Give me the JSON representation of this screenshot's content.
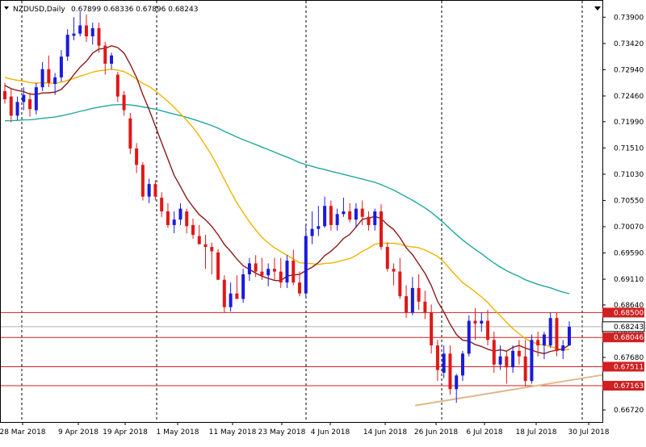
{
  "header": {
    "symbol_tf": "NZDUSD,Daily",
    "ohlc": "0.67899 0.68336 0.67896 0.68243"
  },
  "colors": {
    "bull": "#1a1adc",
    "bear": "#e01818",
    "ma_fast": "#8b1a1a",
    "ma_mid": "#f0b400",
    "ma_slow": "#20a8a0",
    "hline": "#d02020",
    "trend": "#e2b88a",
    "bid_line": "#b0b0b0",
    "grid": "#000000"
  },
  "chart_data": {
    "type": "candlestick",
    "ylim": [
      0.665,
      0.742
    ],
    "y_ticks": [
      "0.73900",
      "0.73420",
      "0.72940",
      "0.72460",
      "0.71990",
      "0.71510",
      "0.71030",
      "0.70550",
      "0.70070",
      "0.69590",
      "0.69110",
      "0.68640",
      "0.68160",
      "0.67680",
      "0.67200",
      "0.66720"
    ],
    "x_labels": [
      "28 Mar 2018",
      "9 Apr 2018",
      "19 Apr 2018",
      "1 May 2018",
      "11 May 2018",
      "23 May 2018",
      "4 Jun 2018",
      "14 Jun 2018",
      "26 Jun 2018",
      "6 Jul 2018",
      "18 Jul 2018",
      "30 Jul 2018"
    ],
    "level_labels": [
      {
        "text": "0.68500",
        "price": 0.685
      },
      {
        "text": "0.68046",
        "price": 0.68046
      },
      {
        "text": "0.67511",
        "price": 0.67511
      },
      {
        "text": "0.67163",
        "price": 0.67163
      }
    ],
    "current_price": {
      "text": "0.68243",
      "price": 0.68243
    },
    "horizontal_levels": [
      0.685,
      0.68046,
      0.67511,
      0.67163
    ],
    "trendline": [
      [
        0.668,
        0.6736
      ]
    ],
    "candles": [
      [
        0.7255,
        0.727,
        0.7232,
        0.724
      ],
      [
        0.7245,
        0.726,
        0.7198,
        0.721
      ],
      [
        0.721,
        0.7245,
        0.7202,
        0.7235
      ],
      [
        0.7235,
        0.7262,
        0.722,
        0.7248
      ],
      [
        0.724,
        0.7252,
        0.7208,
        0.7222
      ],
      [
        0.722,
        0.727,
        0.7212,
        0.7262
      ],
      [
        0.7262,
        0.7308,
        0.7255,
        0.7295
      ],
      [
        0.7295,
        0.732,
        0.7262,
        0.727
      ],
      [
        0.7268,
        0.7288,
        0.7248,
        0.728
      ],
      [
        0.728,
        0.733,
        0.7272,
        0.7318
      ],
      [
        0.7318,
        0.7368,
        0.731,
        0.7358
      ],
      [
        0.7356,
        0.739,
        0.7348,
        0.736
      ],
      [
        0.736,
        0.74,
        0.7355,
        0.7375
      ],
      [
        0.7375,
        0.7395,
        0.7345,
        0.7355
      ],
      [
        0.7355,
        0.738,
        0.734,
        0.737
      ],
      [
        0.737,
        0.738,
        0.7325,
        0.7338
      ],
      [
        0.7338,
        0.7345,
        0.7285,
        0.7305
      ],
      [
        0.7305,
        0.7325,
        0.7295,
        0.732
      ],
      [
        0.7285,
        0.729,
        0.7235,
        0.7245
      ],
      [
        0.7248,
        0.7255,
        0.721,
        0.722
      ],
      [
        0.7205,
        0.7215,
        0.714,
        0.715
      ],
      [
        0.715,
        0.716,
        0.7105,
        0.712
      ],
      [
        0.712,
        0.7125,
        0.7055,
        0.7062
      ],
      [
        0.7062,
        0.7095,
        0.705,
        0.7085
      ],
      [
        0.7085,
        0.7092,
        0.7055,
        0.7062
      ],
      [
        0.706,
        0.707,
        0.7025,
        0.7035
      ],
      [
        0.7035,
        0.705,
        0.7005,
        0.701
      ],
      [
        0.701,
        0.7035,
        0.6995,
        0.702
      ],
      [
        0.702,
        0.705,
        0.701,
        0.704
      ],
      [
        0.7035,
        0.704,
        0.6995,
        0.7008
      ],
      [
        0.701,
        0.7022,
        0.6985,
        0.6992
      ],
      [
        0.699,
        0.701,
        0.6975,
        0.6975
      ],
      [
        0.6975,
        0.6992,
        0.693,
        0.697
      ],
      [
        0.697,
        0.6978,
        0.692,
        0.6962
      ],
      [
        0.696,
        0.6966,
        0.691,
        0.691
      ],
      [
        0.691,
        0.6918,
        0.685,
        0.686
      ],
      [
        0.686,
        0.6905,
        0.6852,
        0.6885
      ],
      [
        0.6885,
        0.6918,
        0.6875,
        0.6875
      ],
      [
        0.6875,
        0.693,
        0.6868,
        0.692
      ],
      [
        0.692,
        0.695,
        0.6908,
        0.694
      ],
      [
        0.694,
        0.6955,
        0.6915,
        0.6925
      ],
      [
        0.6925,
        0.695,
        0.691,
        0.6918
      ],
      [
        0.6918,
        0.694,
        0.6898,
        0.693
      ],
      [
        0.693,
        0.695,
        0.691,
        0.6925
      ],
      [
        0.6925,
        0.695,
        0.6895,
        0.6905
      ],
      [
        0.6905,
        0.6955,
        0.6895,
        0.6945
      ],
      [
        0.6945,
        0.6965,
        0.69,
        0.6905
      ],
      [
        0.6905,
        0.6925,
        0.688,
        0.6885
      ],
      [
        0.6885,
        0.701,
        0.6878,
        0.699
      ],
      [
        0.699,
        0.7035,
        0.6975,
        0.7003
      ],
      [
        0.7003,
        0.7045,
        0.699,
        0.7008
      ],
      [
        0.7008,
        0.7062,
        0.7005,
        0.7045
      ],
      [
        0.7045,
        0.7055,
        0.7,
        0.701
      ],
      [
        0.701,
        0.704,
        0.7,
        0.703
      ],
      [
        0.703,
        0.706,
        0.7025,
        0.7035
      ],
      [
        0.7035,
        0.705,
        0.7015,
        0.702
      ],
      [
        0.702,
        0.705,
        0.7005,
        0.704
      ],
      [
        0.704,
        0.7055,
        0.701,
        0.7025
      ],
      [
        0.7025,
        0.7035,
        0.7,
        0.701
      ],
      [
        0.701,
        0.704,
        0.7,
        0.7035
      ],
      [
        0.7035,
        0.7048,
        0.6965,
        0.697
      ],
      [
        0.697,
        0.6978,
        0.6925,
        0.693
      ],
      [
        0.693,
        0.694,
        0.69,
        0.6925
      ],
      [
        0.6925,
        0.695,
        0.6875,
        0.688
      ],
      [
        0.688,
        0.69,
        0.684,
        0.685
      ],
      [
        0.685,
        0.6915,
        0.6845,
        0.6895
      ],
      [
        0.6895,
        0.692,
        0.6855,
        0.687
      ],
      [
        0.687,
        0.689,
        0.6838,
        0.685
      ],
      [
        0.685,
        0.6865,
        0.6775,
        0.679
      ],
      [
        0.679,
        0.68,
        0.6725,
        0.6745
      ],
      [
        0.674,
        0.679,
        0.673,
        0.6775
      ],
      [
        0.6775,
        0.679,
        0.67,
        0.671
      ],
      [
        0.671,
        0.6738,
        0.6685,
        0.6735
      ],
      [
        0.6735,
        0.678,
        0.6725,
        0.6775
      ],
      [
        0.6775,
        0.6845,
        0.677,
        0.6835
      ],
      [
        0.6835,
        0.6858,
        0.68,
        0.683
      ],
      [
        0.683,
        0.685,
        0.6815,
        0.6835
      ],
      [
        0.6835,
        0.6855,
        0.679,
        0.68
      ],
      [
        0.68,
        0.6815,
        0.674,
        0.6755
      ],
      [
        0.6755,
        0.679,
        0.6745,
        0.677
      ],
      [
        0.677,
        0.678,
        0.672,
        0.675
      ],
      [
        0.675,
        0.679,
        0.674,
        0.678
      ],
      [
        0.678,
        0.68,
        0.6755,
        0.677
      ],
      [
        0.677,
        0.68,
        0.6715,
        0.6725
      ],
      [
        0.6725,
        0.681,
        0.672,
        0.68
      ],
      [
        0.68,
        0.6815,
        0.677,
        0.679
      ],
      [
        0.679,
        0.6815,
        0.6765,
        0.681
      ],
      [
        0.679,
        0.685,
        0.6785,
        0.684
      ],
      [
        0.684,
        0.685,
        0.677,
        0.678
      ],
      [
        0.678,
        0.68,
        0.6765,
        0.679
      ],
      [
        0.679,
        0.6834,
        0.679,
        0.6824
      ]
    ]
  }
}
